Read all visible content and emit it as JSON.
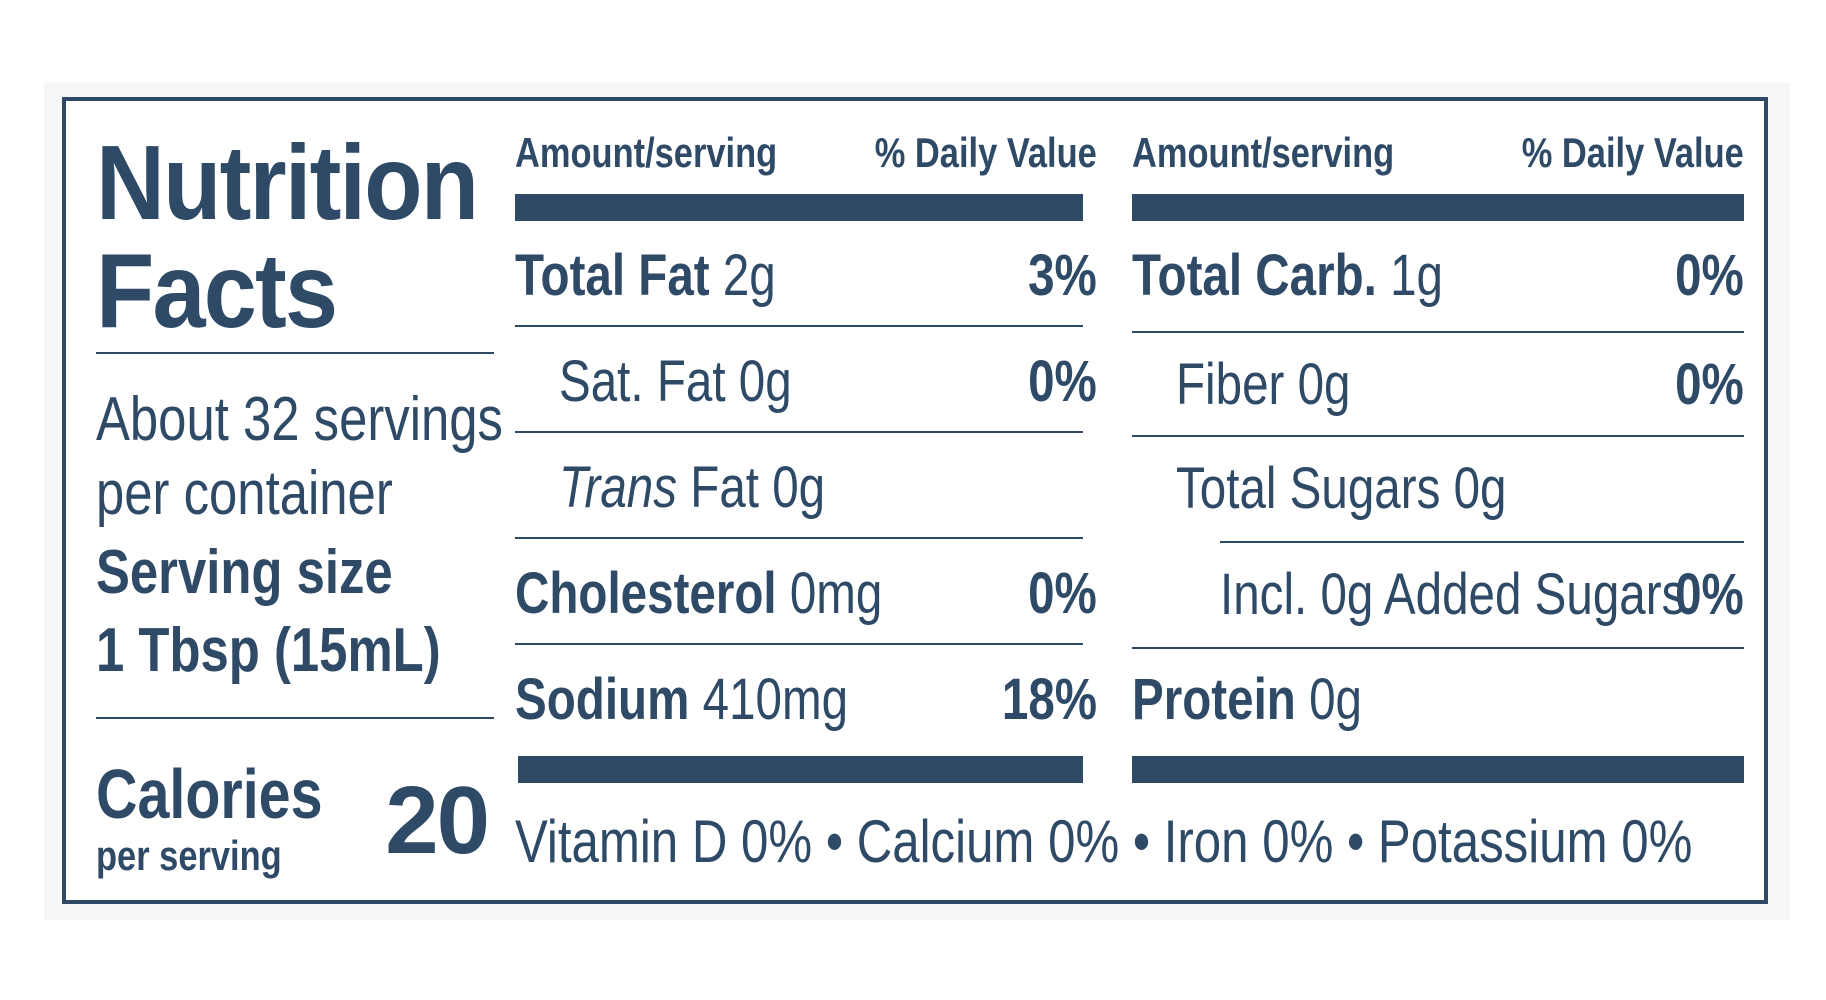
{
  "title": {
    "line1": "Nutrition",
    "line2": "Facts"
  },
  "servings": {
    "line1": "About 32 servings",
    "line2": "per container"
  },
  "serving_size": {
    "label": "Serving size",
    "value": "1 Tbsp (15mL)"
  },
  "calories": {
    "label": "Calories",
    "sub": "per serving",
    "value": "20"
  },
  "left_column": {
    "header_amount": "Amount/serving",
    "header_dv": "% Daily Value",
    "rows": [
      {
        "name": "Total Fat",
        "amount": "2g",
        "dv": "3%"
      },
      {
        "name": "Sat. Fat",
        "amount": "0g",
        "dv": "0%"
      },
      {
        "name_italic": "Trans",
        "name": "Fat",
        "amount": "0g",
        "dv": ""
      },
      {
        "name": "Cholesterol",
        "amount": "0mg",
        "dv": "0%"
      },
      {
        "name": "Sodium",
        "amount": "410mg",
        "dv": "18%"
      }
    ]
  },
  "right_column": {
    "header_amount": "Amount/serving",
    "header_dv": "% Daily Value",
    "rows": [
      {
        "name": "Total Carb.",
        "amount": "1g",
        "dv": "0%"
      },
      {
        "name": "Fiber",
        "amount": "0g",
        "dv": "0%"
      },
      {
        "name": "Total Sugars",
        "amount": "0g",
        "dv": ""
      },
      {
        "name": "Incl. 0g Added Sugars",
        "amount": "",
        "dv": "0%"
      },
      {
        "name": "Protein",
        "amount": "0g",
        "dv": ""
      }
    ]
  },
  "vitamins": "Vitamin D 0% • Calcium 0% • Iron 0% • Potassium 0%",
  "colors": {
    "ink": "#2e4a67",
    "background": "#ffffff"
  }
}
